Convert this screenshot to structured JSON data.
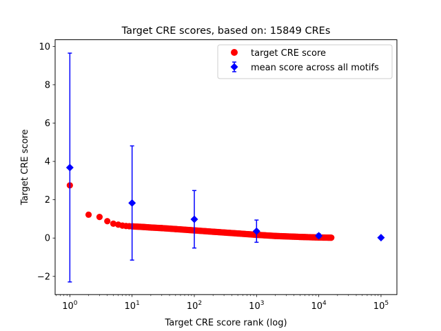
{
  "chart_data": {
    "type": "scatter",
    "title": "Target CRE scores, based on: 15849 CREs",
    "xlabel": "Target CRE score rank (log)",
    "ylabel": "Target CRE score",
    "xscale": "log",
    "xlim": [
      0.58,
      180000
    ],
    "ylim": [
      -2.95,
      10.35
    ],
    "xticks": [
      {
        "value": 1,
        "base": "10",
        "exp": "0"
      },
      {
        "value": 10,
        "base": "10",
        "exp": "1"
      },
      {
        "value": 100,
        "base": "10",
        "exp": "2"
      },
      {
        "value": 1000,
        "base": "10",
        "exp": "3"
      },
      {
        "value": 10000,
        "base": "10",
        "exp": "4"
      },
      {
        "value": 100000,
        "base": "10",
        "exp": "5"
      }
    ],
    "yticks": [
      {
        "value": -2,
        "label": "−2"
      },
      {
        "value": 0,
        "label": "0"
      },
      {
        "value": 2,
        "label": "2"
      },
      {
        "value": 4,
        "label": "4"
      },
      {
        "value": 6,
        "label": "6"
      },
      {
        "value": 8,
        "label": "8"
      },
      {
        "value": 10,
        "label": "10"
      }
    ],
    "grid": false,
    "legend_position": "top-right",
    "series": [
      {
        "name": "target CRE score",
        "marker": "circle",
        "color": "#ff0000",
        "x": [
          1,
          2,
          3,
          4,
          5,
          6,
          7,
          8,
          9,
          10,
          15,
          20,
          30,
          50,
          100,
          200,
          500,
          1000,
          2000,
          5000,
          10000,
          15849
        ],
        "y": [
          2.75,
          1.22,
          1.1,
          0.88,
          0.75,
          0.7,
          0.65,
          0.63,
          0.62,
          0.61,
          0.58,
          0.55,
          0.52,
          0.47,
          0.4,
          0.33,
          0.24,
          0.17,
          0.11,
          0.06,
          0.03,
          0.02
        ]
      },
      {
        "name": "mean score across all motifs",
        "marker": "diamond",
        "color": "#0000ff",
        "x": [
          1,
          10,
          100,
          1000,
          10000,
          100000
        ],
        "y": [
          3.68,
          1.83,
          0.98,
          0.36,
          0.12,
          0.02
        ],
        "err": [
          5.97,
          2.98,
          1.5,
          0.58,
          0.1,
          0.0
        ]
      }
    ]
  }
}
